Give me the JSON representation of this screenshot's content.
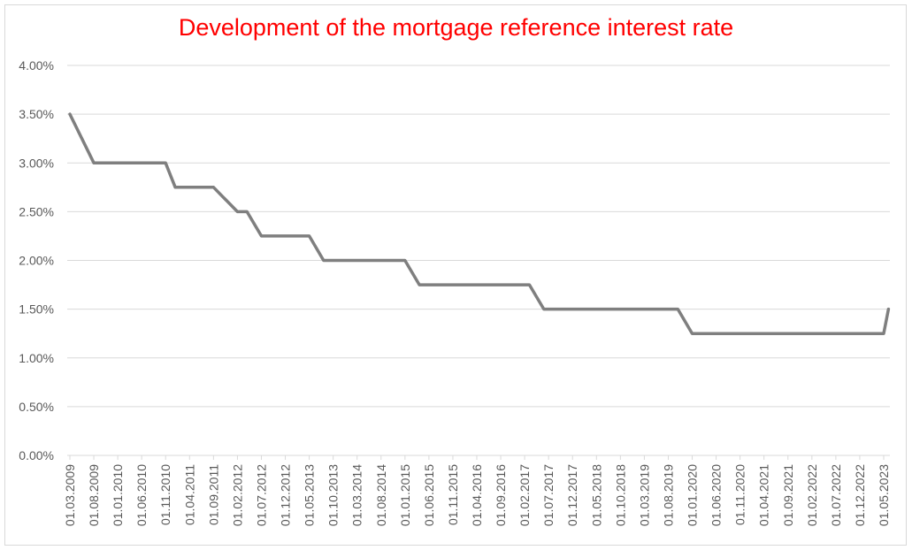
{
  "chart_data": {
    "type": "line",
    "title": "Development of the mortgage reference interest rate",
    "xlabel": "",
    "ylabel": "",
    "ylim": [
      0,
      4
    ],
    "y_ticks": [
      "0.00%",
      "0.50%",
      "1.00%",
      "1.50%",
      "2.00%",
      "2.50%",
      "3.00%",
      "3.50%",
      "4.00%"
    ],
    "grid": true,
    "legend": "none",
    "colors": {
      "line": "#7f7f7f",
      "title": "#ff0000",
      "grid": "#d9d9d9",
      "axis_text": "#595959"
    },
    "x_tick_labels": [
      "01.03.2009",
      "01.08.2009",
      "01.01.2010",
      "01.06.2010",
      "01.11.2010",
      "01.04.2011",
      "01.09.2011",
      "01.02.2012",
      "01.07.2012",
      "01.12.2012",
      "01.05.2013",
      "01.10.2013",
      "01.03.2014",
      "01.08.2014",
      "01.01.2015",
      "01.06.2015",
      "01.11.2015",
      "01.04.2016",
      "01.09.2016",
      "01.02.2017",
      "01.07.2017",
      "01.12.2017",
      "01.05.2018",
      "01.10.2018",
      "01.03.2019",
      "01.08.2019",
      "01.01.2020",
      "01.06.2020",
      "01.11.2020",
      "01.04.2021",
      "01.09.2021",
      "01.02.2022",
      "01.07.2022",
      "01.12.2022",
      "01.05.2023"
    ],
    "series": [
      {
        "x": [
          "01.03.2009",
          "01.08.2009",
          "01.11.2010",
          "01.01.2011",
          "01.09.2011",
          "01.02.2012",
          "01.04.2012",
          "01.07.2012",
          "01.05.2013",
          "01.08.2013",
          "01.01.2015",
          "01.04.2015",
          "01.03.2017",
          "01.06.2017",
          "01.10.2019",
          "01.01.2020",
          "01.03.2020",
          "01.05.2023",
          "01.06.2023"
        ],
        "values": [
          3.5,
          3.0,
          3.0,
          2.75,
          2.75,
          2.5,
          2.5,
          2.25,
          2.25,
          2.0,
          2.0,
          1.75,
          1.75,
          1.5,
          1.5,
          1.25,
          1.25,
          1.25,
          1.5
        ]
      }
    ]
  }
}
